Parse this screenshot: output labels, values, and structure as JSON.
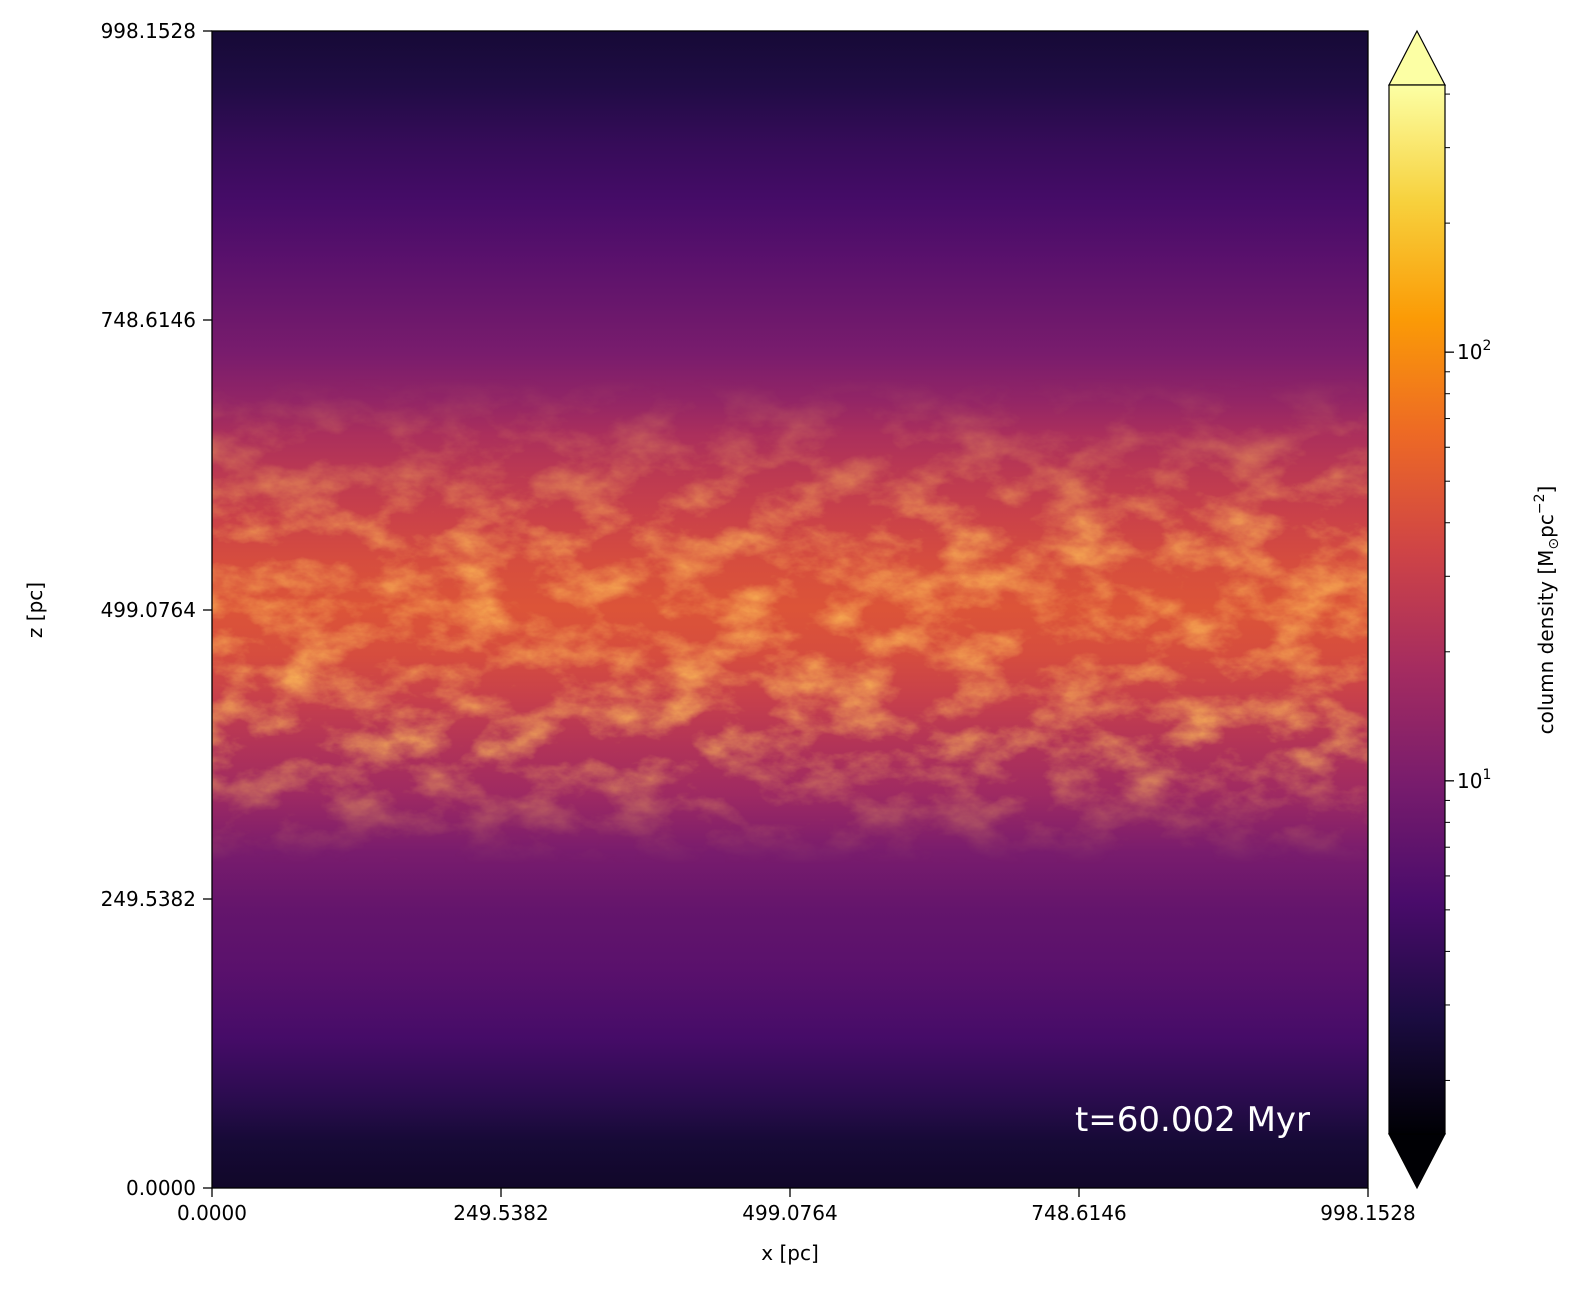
{
  "chart_data": {
    "type": "heatmap",
    "title": "",
    "xlabel": "x [pc]",
    "ylabel": "z [pc]",
    "xlim": [
      0.0,
      998.1528
    ],
    "ylim": [
      0.0,
      998.1528
    ],
    "x_ticks": [
      "0.0000",
      "249.5382",
      "499.0764",
      "748.6146",
      "998.1528"
    ],
    "y_ticks": [
      "0.0000",
      "249.5382",
      "499.0764",
      "748.6146",
      "998.1528"
    ],
    "annotation": "t=60.002 Myr",
    "colormap": "inferno",
    "colorbar": {
      "label_prefix": "column density [M",
      "label_sun": "⊙",
      "label_mid": "pc",
      "label_exp": "−2",
      "label_suffix": "]",
      "scale": "log",
      "extend": "both",
      "range": [
        1.5,
        420
      ],
      "major_ticks": [
        {
          "value": 10,
          "base": "10",
          "exp": "1"
        },
        {
          "value": 100,
          "base": "10",
          "exp": "2"
        }
      ],
      "minor_ticks": [
        2,
        3,
        4,
        5,
        6,
        7,
        8,
        9,
        20,
        30,
        40,
        50,
        60,
        70,
        80,
        90,
        200,
        300,
        400
      ]
    },
    "field_description_profile": {
      "z": [
        0,
        40,
        80,
        130,
        190,
        240,
        290,
        340,
        380,
        420,
        460,
        500,
        540,
        580,
        620,
        650,
        680,
        720,
        760,
        800,
        850,
        900,
        950,
        998
      ],
      "density": [
        2.2,
        2.5,
        3.5,
        5,
        6.5,
        7.5,
        10,
        17,
        22,
        30,
        40,
        45,
        40,
        32,
        25,
        20,
        14,
        10,
        8,
        6.5,
        5,
        4,
        3,
        2.5
      ]
    },
    "colors": {
      "inferno_stops": [
        "#000004",
        "#1b0c41",
        "#4a0c6b",
        "#781c6d",
        "#a52c60",
        "#cf4446",
        "#ed6925",
        "#fb9b06",
        "#f7d13d",
        "#fcffa4"
      ]
    }
  }
}
